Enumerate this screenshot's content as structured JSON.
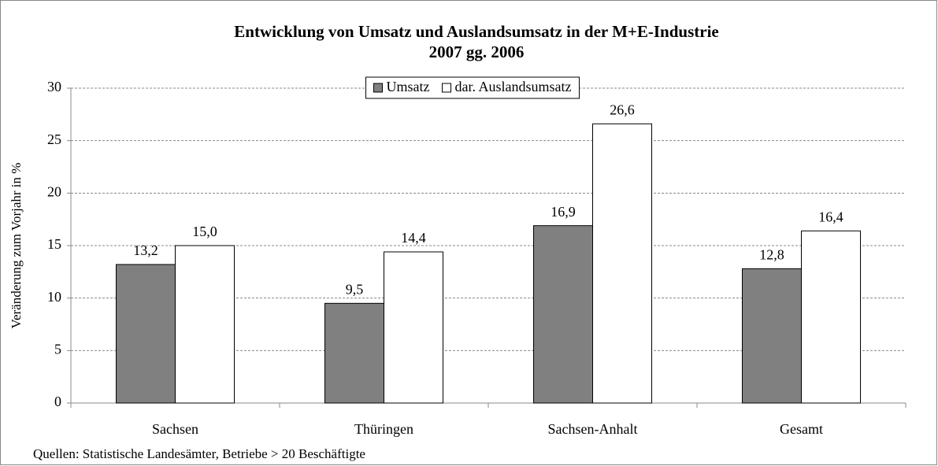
{
  "chart_data": {
    "type": "bar",
    "title": "Entwicklung von Umsatz und Auslandsumsatz in der M+E-Industrie",
    "subtitle": "2007 gg. 2006",
    "y_label": "Veränderung zum Vorjahr in %",
    "source": "Quellen: Statistische Landesämter, Betriebe > 20 Beschäftigte",
    "categories": [
      "Sachsen",
      "Thüringen",
      "Sachsen-Anhalt",
      "Gesamt"
    ],
    "series": [
      {
        "name": "Umsatz",
        "color": "#808080",
        "values": [
          13.2,
          9.5,
          16.9,
          12.8
        ],
        "value_labels": [
          "13,2",
          "9,5",
          "16,9",
          "12,8"
        ]
      },
      {
        "name": "dar. Auslandsumsatz",
        "color": "#ffffff",
        "values": [
          15.0,
          14.4,
          26.6,
          16.4
        ],
        "value_labels": [
          "15,0",
          "14,4",
          "26,6",
          "16,4"
        ]
      }
    ],
    "ylim": [
      0,
      30
    ],
    "yticks": [
      0,
      5,
      10,
      15,
      20,
      25,
      30
    ],
    "grid": true,
    "legend": "top"
  }
}
